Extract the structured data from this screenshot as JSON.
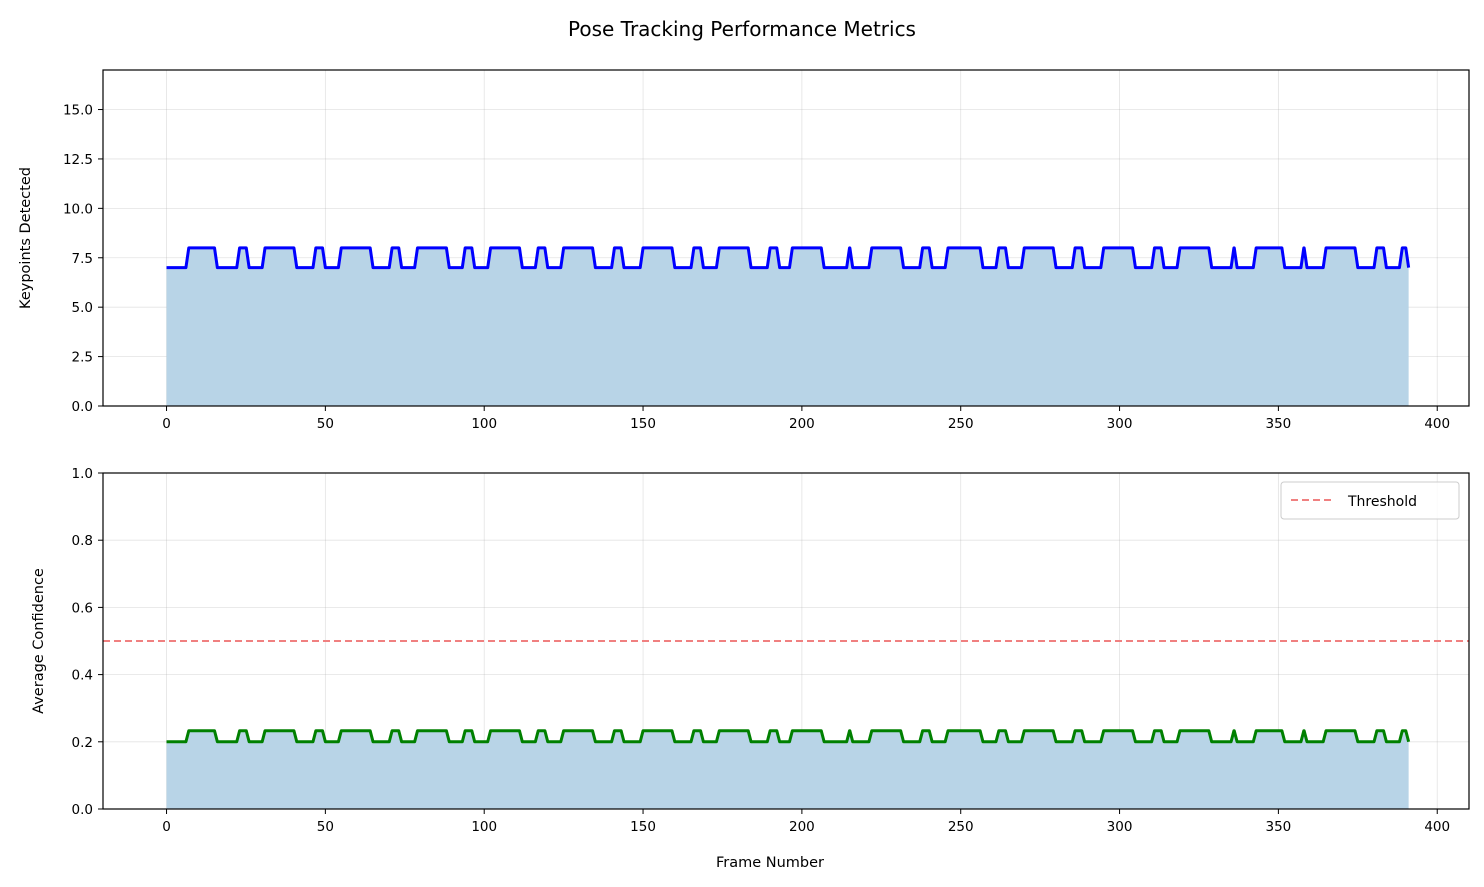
{
  "figure": {
    "title": "Pose Tracking Performance Metrics"
  },
  "chart_data": [
    {
      "type": "area",
      "xlabel": "",
      "ylabel": "Keypoints Detected",
      "xlim": [
        -20,
        410
      ],
      "ylim": [
        0,
        17
      ],
      "xticks": [
        0,
        50,
        100,
        150,
        200,
        250,
        300,
        350,
        400
      ],
      "yticks": [
        0,
        2.5,
        5,
        7.5,
        10,
        12.5,
        15
      ],
      "ytick_labels": [
        "0.0",
        "2.5",
        "5.0",
        "7.5",
        "10.0",
        "12.5",
        "15.0"
      ],
      "grid": true,
      "line_color": "#0000ff",
      "fill_color": "#b8d4e7",
      "low_value": 7,
      "high_value": 8,
      "x_end": 391,
      "transitions": [
        0,
        7,
        16,
        23,
        26,
        31,
        41,
        47,
        50,
        55,
        65,
        71,
        74,
        79,
        89,
        94,
        97,
        102,
        112,
        117,
        120,
        125,
        135,
        141,
        144,
        150,
        160,
        166,
        169,
        174,
        184,
        190,
        193,
        197,
        207,
        215,
        216,
        222,
        232,
        238,
        241,
        246,
        257,
        262,
        265,
        270,
        280,
        286,
        289,
        295,
        305,
        311,
        314,
        319,
        329,
        336,
        337,
        343,
        352,
        358,
        359,
        365,
        375,
        381,
        384,
        389
      ]
    },
    {
      "type": "area",
      "xlabel": "Frame Number",
      "ylabel": "Average Confidence",
      "xlim": [
        -20,
        410
      ],
      "ylim": [
        0,
        1
      ],
      "xticks": [
        0,
        50,
        100,
        150,
        200,
        250,
        300,
        350,
        400
      ],
      "yticks": [
        0,
        0.2,
        0.4,
        0.6,
        0.8,
        1.0
      ],
      "ytick_labels": [
        "0.0",
        "0.2",
        "0.4",
        "0.6",
        "0.8",
        "1.0"
      ],
      "grid": true,
      "line_color": "#008000",
      "fill_color": "#b8d4e7",
      "low_value": 0.2,
      "high_value": 0.233,
      "x_end": 391,
      "transitions": [
        0,
        7,
        16,
        23,
        26,
        31,
        41,
        47,
        50,
        55,
        65,
        71,
        74,
        79,
        89,
        94,
        97,
        102,
        112,
        117,
        120,
        125,
        135,
        141,
        144,
        150,
        160,
        166,
        169,
        174,
        184,
        190,
        193,
        197,
        207,
        215,
        216,
        222,
        232,
        238,
        241,
        246,
        257,
        262,
        265,
        270,
        280,
        286,
        289,
        295,
        305,
        311,
        314,
        319,
        329,
        336,
        337,
        343,
        352,
        358,
        359,
        365,
        375,
        381,
        384,
        389
      ],
      "threshold": {
        "value": 0.5,
        "label": "Threshold",
        "color": "#f08080"
      },
      "legend_position": "top-right"
    }
  ]
}
